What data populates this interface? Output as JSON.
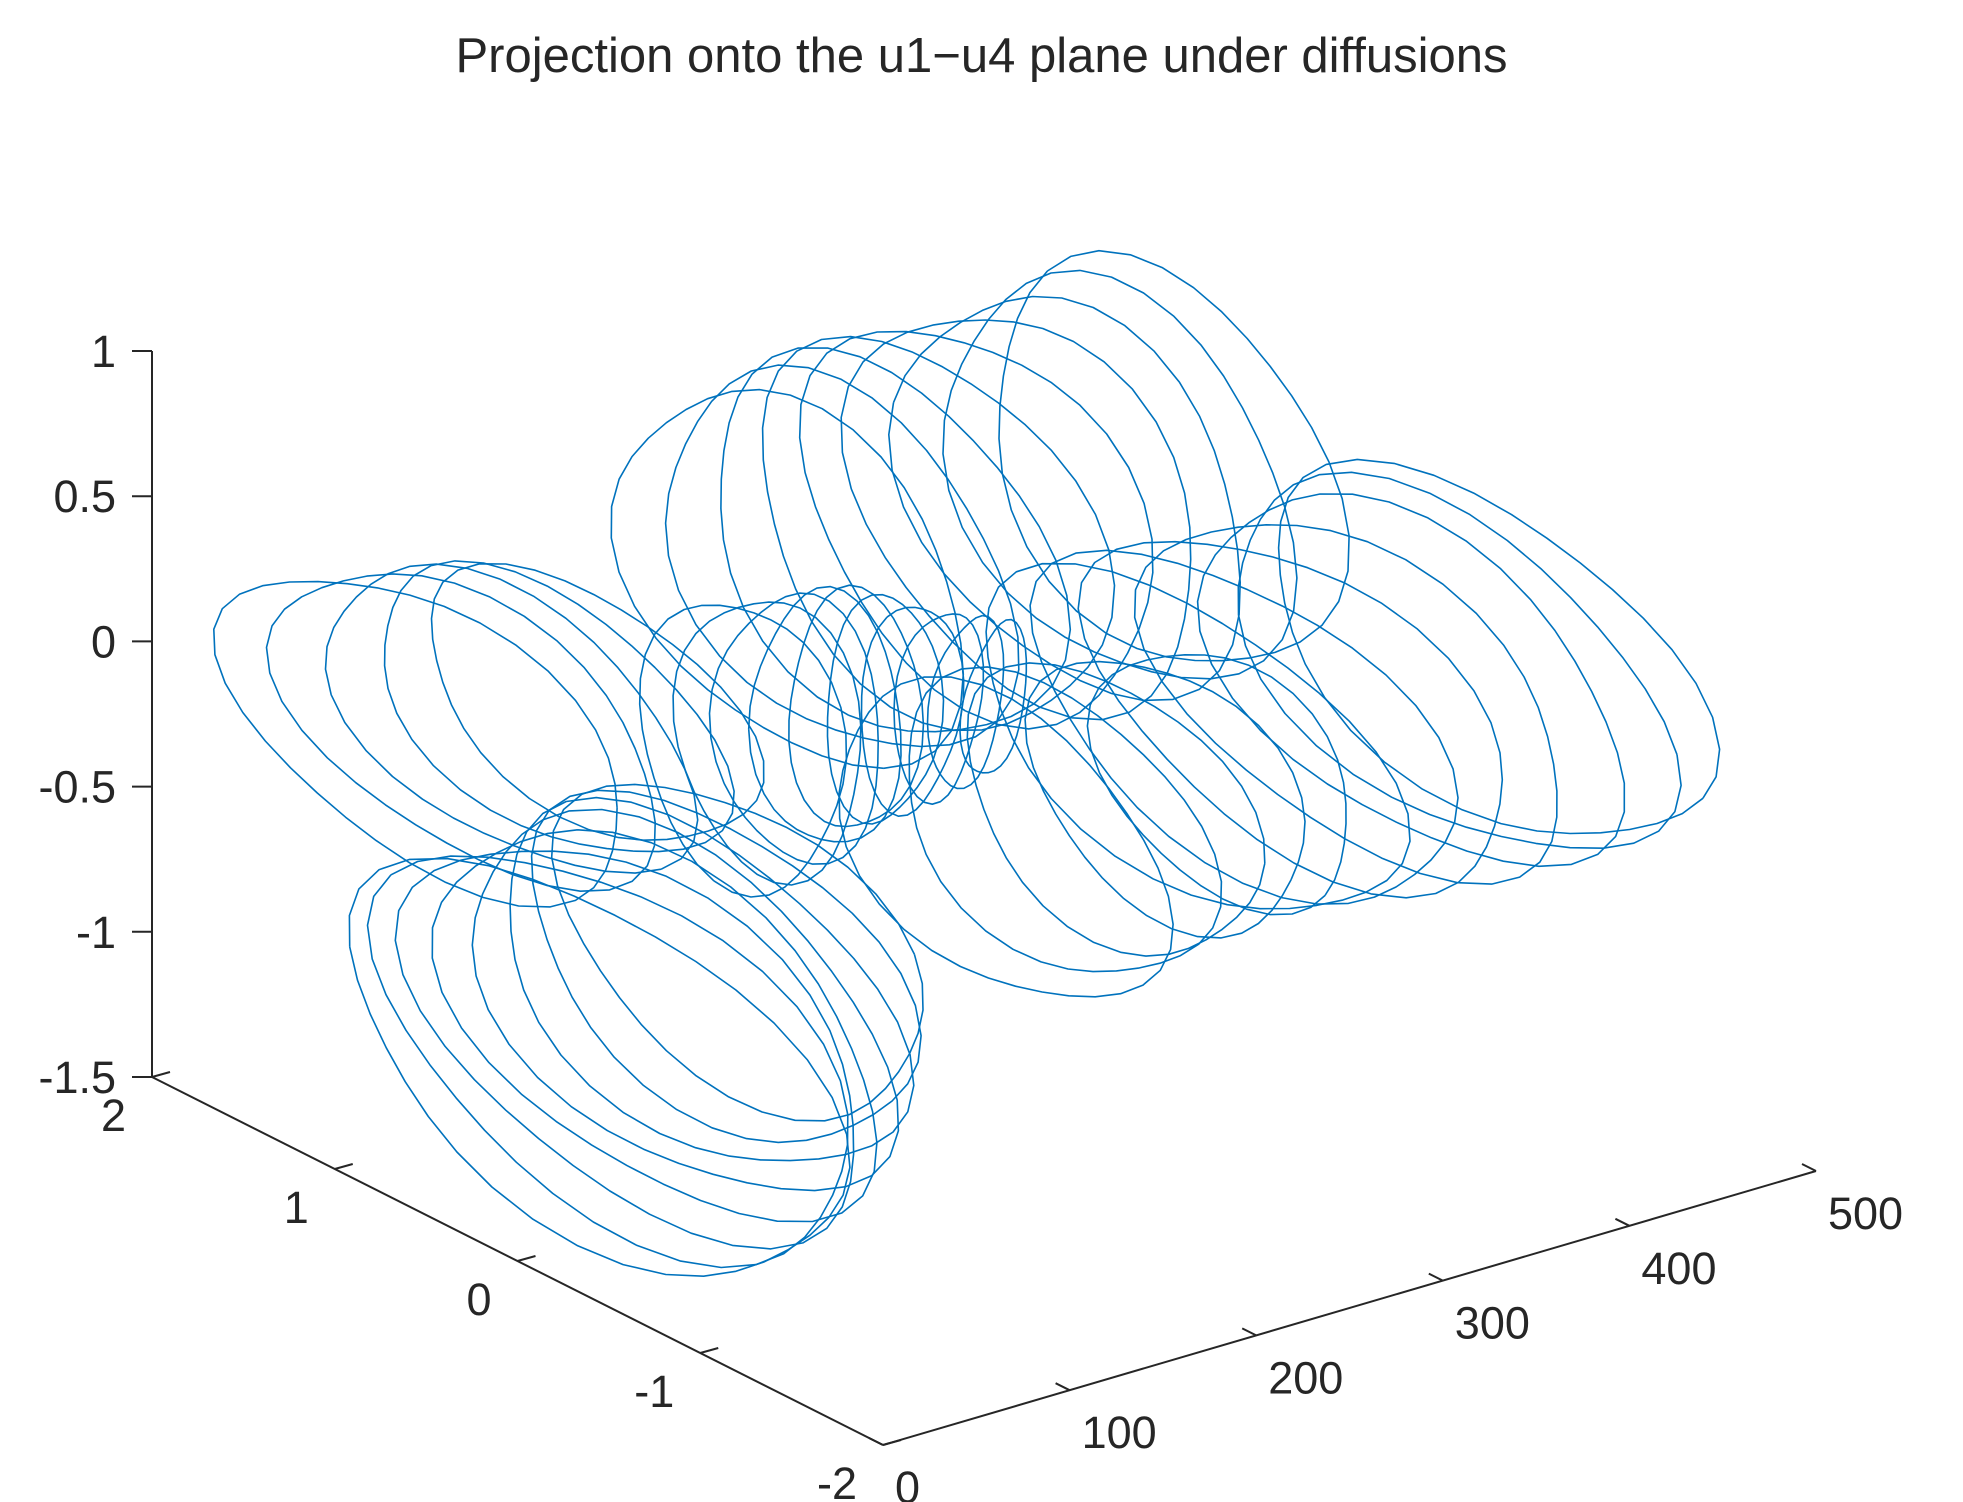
{
  "chart_data": {
    "type": "line",
    "projection": "3d",
    "title": "Projection onto the u1−u4 plane under diffusions",
    "xlabel": "",
    "ylabel": "",
    "zlabel": "",
    "x_axis": {
      "ticks": [
        0,
        100,
        200,
        300,
        400,
        500
      ],
      "tick_labels": [
        "0",
        "100",
        "200",
        "300",
        "400",
        "500"
      ],
      "range": [
        0,
        500
      ]
    },
    "y_axis": {
      "ticks": [
        -2,
        -1,
        0,
        1,
        2
      ],
      "tick_labels": [
        "-2",
        "-1",
        "0",
        "1",
        "2"
      ],
      "range": [
        -2,
        2
      ]
    },
    "z_axis": {
      "ticks": [
        -1.5,
        -1,
        -0.5,
        0,
        0.5,
        1
      ],
      "tick_labels": [
        "-1.5",
        "-1",
        "-0.5",
        "0",
        "0.5",
        "1"
      ],
      "range": [
        -1.5,
        1
      ]
    },
    "grid": false,
    "legend": "none",
    "line_color": "#0072BD",
    "series": [
      {
        "shape": "orbit",
        "x": 8,
        "y_center": -0.35,
        "y_amp": 1.35,
        "z_center": -0.75,
        "z_amp": 0.55
      },
      {
        "shape": "orbit",
        "x": 24,
        "y_center": -0.3,
        "y_amp": 1.3,
        "z_center": -0.74,
        "z_amp": 0.55
      },
      {
        "shape": "orbit",
        "x": 40,
        "y_center": -0.25,
        "y_amp": 1.25,
        "z_center": -0.73,
        "z_amp": 0.54
      },
      {
        "shape": "orbit",
        "x": 56,
        "y_center": -0.2,
        "y_amp": 1.2,
        "z_center": -0.72,
        "z_amp": 0.53
      },
      {
        "shape": "orbit",
        "x": 72,
        "y_center": -0.15,
        "y_amp": 1.15,
        "z_center": -0.71,
        "z_amp": 0.52
      },
      {
        "shape": "orbit",
        "x": 88,
        "y_center": -0.1,
        "y_amp": 1.1,
        "z_center": -0.7,
        "z_amp": 0.5
      },
      {
        "shape": "orbit",
        "x": 104,
        "y_center": -0.05,
        "y_amp": 1.05,
        "z_center": -0.68,
        "z_amp": 0.48
      },
      {
        "shape": "orbit",
        "x": 120,
        "y_center": 0,
        "y_amp": 1,
        "z_center": -0.65,
        "z_amp": 0.46
      },
      {
        "shape": "orbit",
        "x": 20,
        "y_center": 0.7,
        "y_amp": 1.1,
        "z_center": 0.05,
        "z_amp": 0.42
      },
      {
        "shape": "orbit",
        "x": 40,
        "y_center": 0.68,
        "y_amp": 1.05,
        "z_center": 0.05,
        "z_amp": 0.41
      },
      {
        "shape": "orbit",
        "x": 60,
        "y_center": 0.66,
        "y_amp": 1,
        "z_center": 0.04,
        "z_amp": 0.4
      },
      {
        "shape": "orbit",
        "x": 80,
        "y_center": 0.64,
        "y_amp": 0.95,
        "z_center": 0.03,
        "z_amp": 0.38
      },
      {
        "shape": "orbit",
        "x": 100,
        "y_center": 0.62,
        "y_amp": 0.9,
        "z_center": 0.02,
        "z_amp": 0.36
      },
      {
        "shape": "orbit",
        "x": 150,
        "y_center": 0.3,
        "y_amp": 0.55,
        "z_center": -0.1,
        "z_amp": 0.45
      },
      {
        "shape": "orbit",
        "x": 165,
        "y_center": 0.3,
        "y_amp": 0.5,
        "z_center": -0.1,
        "z_amp": 0.44
      },
      {
        "shape": "orbit",
        "x": 180,
        "y_center": 0.3,
        "y_amp": 0.45,
        "z_center": -0.1,
        "z_amp": 0.42
      },
      {
        "shape": "orbit",
        "x": 195,
        "y_center": 0.3,
        "y_amp": 0.4,
        "z_center": -0.1,
        "z_amp": 0.4
      },
      {
        "shape": "orbit",
        "x": 210,
        "y_center": 0.3,
        "y_amp": 0.35,
        "z_center": -0.1,
        "z_amp": 0.38
      },
      {
        "shape": "orbit",
        "x": 225,
        "y_center": 0.3,
        "y_amp": 0.3,
        "z_center": -0.12,
        "z_amp": 0.36
      },
      {
        "shape": "orbit",
        "x": 240,
        "y_center": 0.3,
        "y_amp": 0.26,
        "z_center": -0.14,
        "z_amp": 0.33
      },
      {
        "shape": "orbit",
        "x": 255,
        "y_center": 0.3,
        "y_amp": 0.22,
        "z_center": -0.16,
        "z_amp": 0.3
      },
      {
        "shape": "orbit",
        "x": 270,
        "y_center": 0.3,
        "y_amp": 0.18,
        "z_center": -0.18,
        "z_amp": 0.27
      },
      {
        "shape": "orbit",
        "x": 285,
        "y_center": 0.3,
        "y_amp": 0.15,
        "z_center": -0.2,
        "z_amp": 0.24
      },
      {
        "shape": "orbit",
        "x": 200,
        "y_center": -0.6,
        "y_amp": 0.9,
        "z_center": -0.25,
        "z_amp": 0.45
      },
      {
        "shape": "orbit",
        "x": 230,
        "y_center": -0.6,
        "y_amp": 0.85,
        "z_center": -0.25,
        "z_amp": 0.43
      },
      {
        "shape": "orbit",
        "x": 260,
        "y_center": -0.6,
        "y_amp": 0.8,
        "z_center": -0.25,
        "z_amp": 0.41
      },
      {
        "shape": "orbit",
        "x": 290,
        "y_center": -0.6,
        "y_amp": 0.75,
        "z_center": -0.25,
        "z_amp": 0.39
      },
      {
        "shape": "orbit",
        "x": 320,
        "y_center": -0.6,
        "y_amp": 0.7,
        "z_center": -0.25,
        "z_amp": 0.37
      },
      {
        "shape": "orbit",
        "x": 250,
        "y_center": 1.05,
        "y_amp": 0.95,
        "z_center": 0.05,
        "z_amp": 0.55
      },
      {
        "shape": "orbit",
        "x": 275,
        "y_center": 1.05,
        "y_amp": 0.95,
        "z_center": 0.05,
        "z_amp": 0.56
      },
      {
        "shape": "orbit",
        "x": 300,
        "y_center": 1.05,
        "y_amp": 0.95,
        "z_center": 0.05,
        "z_amp": 0.57
      },
      {
        "shape": "orbit",
        "x": 325,
        "y_center": 1.05,
        "y_amp": 0.95,
        "z_center": 0.05,
        "z_amp": 0.58
      },
      {
        "shape": "orbit",
        "x": 350,
        "y_center": 1.05,
        "y_amp": 0.95,
        "z_center": 0.05,
        "z_amp": 0.59
      },
      {
        "shape": "orbit",
        "x": 375,
        "y_center": 1.05,
        "y_amp": 0.95,
        "z_center": 0.05,
        "z_amp": 0.6
      },
      {
        "shape": "orbit",
        "x": 400,
        "y_center": 1.05,
        "y_amp": 0.95,
        "z_center": 0.05,
        "z_amp": 0.6
      },
      {
        "shape": "orbit",
        "x": 425,
        "y_center": 1.05,
        "y_amp": 0.95,
        "z_center": 0.05,
        "z_amp": 0.61
      },
      {
        "shape": "orbit",
        "x": 450,
        "y_center": 1.05,
        "y_amp": 0.95,
        "z_center": 0.05,
        "z_amp": 0.62
      },
      {
        "shape": "orbit",
        "x": 340,
        "y_center": -0.2,
        "y_amp": 1.15,
        "z_center": -0.3,
        "z_amp": 0.45
      },
      {
        "shape": "orbit",
        "x": 370,
        "y_center": -0.2,
        "y_amp": 1.15,
        "z_center": -0.3,
        "z_amp": 0.46
      },
      {
        "shape": "orbit",
        "x": 400,
        "y_center": -0.2,
        "y_amp": 1.15,
        "z_center": -0.3,
        "z_amp": 0.47
      },
      {
        "shape": "orbit",
        "x": 430,
        "y_center": -0.2,
        "y_amp": 1.15,
        "z_center": -0.3,
        "z_amp": 0.48
      },
      {
        "shape": "orbit",
        "x": 460,
        "y_center": -0.2,
        "y_amp": 1.15,
        "z_center": -0.3,
        "z_amp": 0.5
      },
      {
        "shape": "orbit",
        "x": 480,
        "y_center": -0.2,
        "y_amp": 1.2,
        "z_center": -0.3,
        "z_amp": 0.5
      },
      {
        "shape": "orbit",
        "x": 500,
        "y_center": -0.2,
        "y_amp": 1.2,
        "z_center": -0.3,
        "z_amp": 0.5
      }
    ]
  }
}
